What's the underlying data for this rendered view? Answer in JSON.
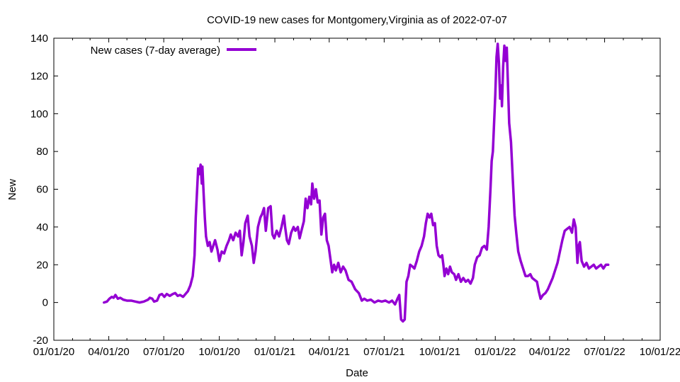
{
  "chart_data": {
    "type": "line",
    "title": "COVID-19 new cases for Montgomery,Virginia as of 2022-07-07",
    "xlabel": "Date",
    "ylabel": "New",
    "ylim": [
      -20,
      140
    ],
    "xlim": [
      "2020-01-01",
      "2022-10-01"
    ],
    "y_ticks": [
      -20,
      0,
      20,
      40,
      60,
      80,
      100,
      120,
      140
    ],
    "x_ticks": [
      {
        "date": "2020-01-01",
        "label": "01/01/20"
      },
      {
        "date": "2020-04-01",
        "label": "04/01/20"
      },
      {
        "date": "2020-07-01",
        "label": "07/01/20"
      },
      {
        "date": "2020-10-01",
        "label": "10/01/20"
      },
      {
        "date": "2021-01-01",
        "label": "01/01/21"
      },
      {
        "date": "2021-04-01",
        "label": "04/01/21"
      },
      {
        "date": "2021-07-01",
        "label": "07/01/21"
      },
      {
        "date": "2021-10-01",
        "label": "10/01/21"
      },
      {
        "date": "2022-01-01",
        "label": "01/01/22"
      },
      {
        "date": "2022-04-01",
        "label": "04/01/22"
      },
      {
        "date": "2022-07-01",
        "label": "07/01/22"
      },
      {
        "date": "2022-10-01",
        "label": "10/01/22"
      }
    ],
    "legend": {
      "position": "top-left"
    },
    "series": [
      {
        "name": "New cases (7-day average)",
        "color": "#9400d3",
        "points": [
          [
            "2020-03-24",
            0
          ],
          [
            "2020-03-29",
            0.5
          ],
          [
            "2020-04-02",
            2
          ],
          [
            "2020-04-06",
            3
          ],
          [
            "2020-04-09",
            2.5
          ],
          [
            "2020-04-12",
            4
          ],
          [
            "2020-04-16",
            2
          ],
          [
            "2020-04-20",
            2.5
          ],
          [
            "2020-04-25",
            1.5
          ],
          [
            "2020-05-01",
            1
          ],
          [
            "2020-05-08",
            1
          ],
          [
            "2020-05-15",
            0.5
          ],
          [
            "2020-05-22",
            0
          ],
          [
            "2020-05-29",
            0.5
          ],
          [
            "2020-06-05",
            1.5
          ],
          [
            "2020-06-08",
            2.5
          ],
          [
            "2020-06-12",
            2
          ],
          [
            "2020-06-15",
            0.5
          ],
          [
            "2020-06-20",
            1
          ],
          [
            "2020-06-24",
            4
          ],
          [
            "2020-06-28",
            4.5
          ],
          [
            "2020-07-02",
            3
          ],
          [
            "2020-07-06",
            4.5
          ],
          [
            "2020-07-11",
            3.5
          ],
          [
            "2020-07-16",
            4.5
          ],
          [
            "2020-07-20",
            5
          ],
          [
            "2020-07-24",
            3.5
          ],
          [
            "2020-07-28",
            4
          ],
          [
            "2020-08-02",
            3
          ],
          [
            "2020-08-06",
            4.5
          ],
          [
            "2020-08-10",
            6
          ],
          [
            "2020-08-14",
            9
          ],
          [
            "2020-08-18",
            14
          ],
          [
            "2020-08-21",
            25
          ],
          [
            "2020-08-23",
            45
          ],
          [
            "2020-08-25",
            58
          ],
          [
            "2020-08-27",
            71
          ],
          [
            "2020-08-29",
            68
          ],
          [
            "2020-08-31",
            73
          ],
          [
            "2020-09-02",
            63
          ],
          [
            "2020-09-03",
            72
          ],
          [
            "2020-09-05",
            58
          ],
          [
            "2020-09-07",
            45
          ],
          [
            "2020-09-09",
            35
          ],
          [
            "2020-09-12",
            30
          ],
          [
            "2020-09-15",
            32
          ],
          [
            "2020-09-18",
            27
          ],
          [
            "2020-09-21",
            30
          ],
          [
            "2020-09-24",
            33
          ],
          [
            "2020-09-28",
            28
          ],
          [
            "2020-10-01",
            22
          ],
          [
            "2020-10-05",
            27
          ],
          [
            "2020-10-09",
            26
          ],
          [
            "2020-10-13",
            30
          ],
          [
            "2020-10-17",
            33
          ],
          [
            "2020-10-20",
            36
          ],
          [
            "2020-10-24",
            33
          ],
          [
            "2020-10-28",
            37
          ],
          [
            "2020-11-01",
            35
          ],
          [
            "2020-11-04",
            38
          ],
          [
            "2020-11-07",
            25
          ],
          [
            "2020-11-10",
            32
          ],
          [
            "2020-11-13",
            42
          ],
          [
            "2020-11-17",
            46
          ],
          [
            "2020-11-20",
            35
          ],
          [
            "2020-11-24",
            30
          ],
          [
            "2020-11-27",
            21
          ],
          [
            "2020-11-30",
            27
          ],
          [
            "2020-12-04",
            40
          ],
          [
            "2020-12-08",
            45
          ],
          [
            "2020-12-11",
            47
          ],
          [
            "2020-12-14",
            50
          ],
          [
            "2020-12-17",
            38
          ],
          [
            "2020-12-21",
            50
          ],
          [
            "2020-12-25",
            51
          ],
          [
            "2020-12-28",
            36
          ],
          [
            "2020-12-31",
            34
          ],
          [
            "2021-01-04",
            38
          ],
          [
            "2021-01-08",
            35
          ],
          [
            "2021-01-12",
            40
          ],
          [
            "2021-01-16",
            46
          ],
          [
            "2021-01-18",
            40
          ],
          [
            "2021-01-21",
            33
          ],
          [
            "2021-01-24",
            31
          ],
          [
            "2021-01-28",
            37
          ],
          [
            "2021-02-01",
            40
          ],
          [
            "2021-02-04",
            38
          ],
          [
            "2021-02-08",
            40
          ],
          [
            "2021-02-11",
            34
          ],
          [
            "2021-02-14",
            38
          ],
          [
            "2021-02-18",
            43
          ],
          [
            "2021-02-21",
            55
          ],
          [
            "2021-02-24",
            50
          ],
          [
            "2021-02-27",
            56
          ],
          [
            "2021-03-02",
            52
          ],
          [
            "2021-03-04",
            63
          ],
          [
            "2021-03-07",
            55
          ],
          [
            "2021-03-10",
            60
          ],
          [
            "2021-03-13",
            53
          ],
          [
            "2021-03-16",
            54
          ],
          [
            "2021-03-19",
            36
          ],
          [
            "2021-03-22",
            45
          ],
          [
            "2021-03-25",
            47
          ],
          [
            "2021-03-28",
            33
          ],
          [
            "2021-03-31",
            30
          ],
          [
            "2021-04-03",
            23
          ],
          [
            "2021-04-06",
            16
          ],
          [
            "2021-04-09",
            20
          ],
          [
            "2021-04-12",
            17
          ],
          [
            "2021-04-16",
            21
          ],
          [
            "2021-04-20",
            16
          ],
          [
            "2021-04-24",
            19
          ],
          [
            "2021-04-28",
            17
          ],
          [
            "2021-05-03",
            12
          ],
          [
            "2021-05-08",
            11
          ],
          [
            "2021-05-14",
            7
          ],
          [
            "2021-05-20",
            5
          ],
          [
            "2021-05-25",
            1
          ],
          [
            "2021-05-29",
            2
          ],
          [
            "2021-06-03",
            1
          ],
          [
            "2021-06-09",
            1.5
          ],
          [
            "2021-06-15",
            0
          ],
          [
            "2021-06-21",
            1
          ],
          [
            "2021-06-27",
            0.5
          ],
          [
            "2021-07-03",
            1
          ],
          [
            "2021-07-09",
            0
          ],
          [
            "2021-07-14",
            1
          ],
          [
            "2021-07-19",
            -1
          ],
          [
            "2021-07-23",
            2
          ],
          [
            "2021-07-26",
            4
          ],
          [
            "2021-07-29",
            -9
          ],
          [
            "2021-08-01",
            -10
          ],
          [
            "2021-08-04",
            -9
          ],
          [
            "2021-08-07",
            11
          ],
          [
            "2021-08-10",
            14
          ],
          [
            "2021-08-13",
            20
          ],
          [
            "2021-08-17",
            19
          ],
          [
            "2021-08-20",
            18
          ],
          [
            "2021-08-24",
            22
          ],
          [
            "2021-08-28",
            27
          ],
          [
            "2021-09-01",
            30
          ],
          [
            "2021-09-05",
            35
          ],
          [
            "2021-09-08",
            42
          ],
          [
            "2021-09-11",
            47
          ],
          [
            "2021-09-14",
            45
          ],
          [
            "2021-09-17",
            47
          ],
          [
            "2021-09-20",
            41
          ],
          [
            "2021-09-23",
            42
          ],
          [
            "2021-09-26",
            30
          ],
          [
            "2021-09-29",
            25
          ],
          [
            "2021-10-02",
            24
          ],
          [
            "2021-10-05",
            25
          ],
          [
            "2021-10-07",
            20
          ],
          [
            "2021-10-09",
            14
          ],
          [
            "2021-10-12",
            18
          ],
          [
            "2021-10-15",
            15
          ],
          [
            "2021-10-18",
            19
          ],
          [
            "2021-10-21",
            16
          ],
          [
            "2021-10-25",
            15
          ],
          [
            "2021-10-28",
            12
          ],
          [
            "2021-11-01",
            15
          ],
          [
            "2021-11-05",
            11
          ],
          [
            "2021-11-09",
            13
          ],
          [
            "2021-11-13",
            11
          ],
          [
            "2021-11-17",
            12
          ],
          [
            "2021-11-21",
            10
          ],
          [
            "2021-11-25",
            13
          ],
          [
            "2021-11-28",
            20
          ],
          [
            "2021-12-02",
            24
          ],
          [
            "2021-12-06",
            25
          ],
          [
            "2021-12-10",
            29
          ],
          [
            "2021-12-14",
            30
          ],
          [
            "2021-12-18",
            28
          ],
          [
            "2021-12-21",
            40
          ],
          [
            "2021-12-24",
            60
          ],
          [
            "2021-12-26",
            75
          ],
          [
            "2021-12-28",
            80
          ],
          [
            "2022-01-01",
            110
          ],
          [
            "2022-01-03",
            130
          ],
          [
            "2022-01-05",
            137
          ],
          [
            "2022-01-07",
            127
          ],
          [
            "2022-01-09",
            108
          ],
          [
            "2022-01-11",
            115
          ],
          [
            "2022-01-12",
            104
          ],
          [
            "2022-01-14",
            125
          ],
          [
            "2022-01-16",
            136
          ],
          [
            "2022-01-18",
            128
          ],
          [
            "2022-01-20",
            135
          ],
          [
            "2022-01-22",
            115
          ],
          [
            "2022-01-24",
            95
          ],
          [
            "2022-01-27",
            85
          ],
          [
            "2022-01-30",
            65
          ],
          [
            "2022-02-02",
            46
          ],
          [
            "2022-02-05",
            36
          ],
          [
            "2022-02-08",
            27
          ],
          [
            "2022-02-12",
            22
          ],
          [
            "2022-02-16",
            18
          ],
          [
            "2022-02-20",
            14
          ],
          [
            "2022-02-24",
            14
          ],
          [
            "2022-02-28",
            15
          ],
          [
            "2022-03-03",
            13
          ],
          [
            "2022-03-07",
            12
          ],
          [
            "2022-03-11",
            11
          ],
          [
            "2022-03-14",
            6
          ],
          [
            "2022-03-17",
            2
          ],
          [
            "2022-03-21",
            4
          ],
          [
            "2022-03-25",
            5
          ],
          [
            "2022-03-29",
            7
          ],
          [
            "2022-04-02",
            10
          ],
          [
            "2022-04-06",
            13
          ],
          [
            "2022-04-10",
            17
          ],
          [
            "2022-04-14",
            21
          ],
          [
            "2022-04-18",
            27
          ],
          [
            "2022-04-22",
            33
          ],
          [
            "2022-04-26",
            38
          ],
          [
            "2022-04-30",
            39
          ],
          [
            "2022-05-04",
            40
          ],
          [
            "2022-05-08",
            37
          ],
          [
            "2022-05-11",
            44
          ],
          [
            "2022-05-14",
            40
          ],
          [
            "2022-05-17",
            21
          ],
          [
            "2022-05-19",
            30
          ],
          [
            "2022-05-21",
            32
          ],
          [
            "2022-05-24",
            22
          ],
          [
            "2022-05-28",
            19
          ],
          [
            "2022-06-01",
            21
          ],
          [
            "2022-06-05",
            18
          ],
          [
            "2022-06-09",
            19
          ],
          [
            "2022-06-13",
            20
          ],
          [
            "2022-06-17",
            18
          ],
          [
            "2022-06-21",
            19
          ],
          [
            "2022-06-25",
            20
          ],
          [
            "2022-06-29",
            18
          ],
          [
            "2022-07-03",
            20
          ],
          [
            "2022-07-07",
            20
          ]
        ]
      }
    ]
  }
}
